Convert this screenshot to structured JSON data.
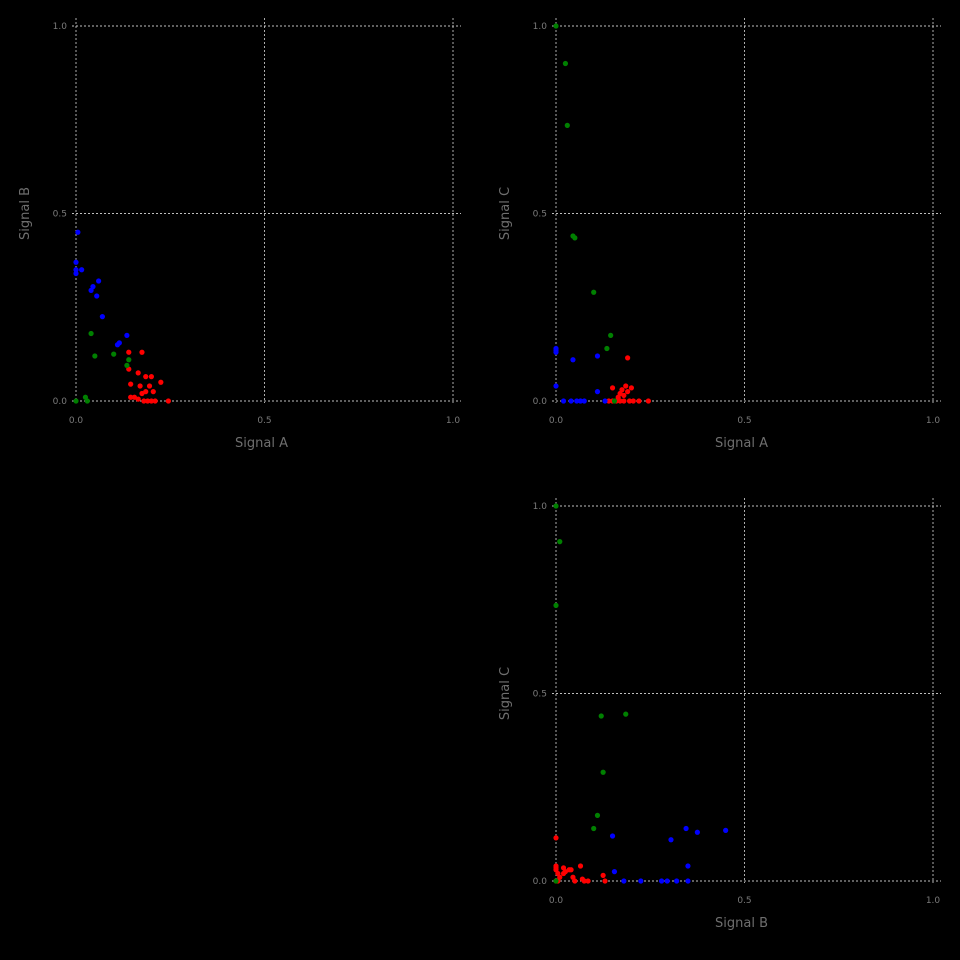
{
  "chart_data": [
    {
      "type": "scatter",
      "panel": "top-left",
      "xlabel": "Signal A",
      "ylabel": "Signal B",
      "xlim": [
        0,
        1
      ],
      "ylim": [
        0,
        1
      ],
      "xticks": [
        "0.0",
        "0.5",
        "1.0"
      ],
      "yticks": [
        "0.0",
        "0.5",
        "1.0"
      ],
      "grid": true,
      "series": [
        {
          "color": "#ff0000",
          "points": [
            [
              0.14,
              0.13
            ],
            [
              0.175,
              0.13
            ],
            [
              0.14,
              0.085
            ],
            [
              0.165,
              0.075
            ],
            [
              0.185,
              0.065
            ],
            [
              0.2,
              0.065
            ],
            [
              0.225,
              0.05
            ],
            [
              0.145,
              0.045
            ],
            [
              0.17,
              0.04
            ],
            [
              0.195,
              0.04
            ],
            [
              0.185,
              0.025
            ],
            [
              0.205,
              0.025
            ],
            [
              0.175,
              0.02
            ],
            [
              0.145,
              0.01
            ],
            [
              0.155,
              0.01
            ],
            [
              0.165,
              0.005
            ],
            [
              0.18,
              0.0
            ],
            [
              0.19,
              0.0
            ],
            [
              0.2,
              0.0
            ],
            [
              0.21,
              0.0
            ],
            [
              0.245,
              0.0
            ]
          ]
        },
        {
          "color": "#0000ff",
          "points": [
            [
              0.005,
              0.45
            ],
            [
              0.0,
              0.37
            ],
            [
              0.0,
              0.35
            ],
            [
              0.0,
              0.34
            ],
            [
              0.015,
              0.35
            ],
            [
              0.06,
              0.32
            ],
            [
              0.045,
              0.305
            ],
            [
              0.04,
              0.295
            ],
            [
              0.055,
              0.28
            ],
            [
              0.07,
              0.225
            ],
            [
              0.135,
              0.175
            ],
            [
              0.115,
              0.155
            ],
            [
              0.11,
              0.15
            ]
          ]
        },
        {
          "color": "#008000",
          "points": [
            [
              0.04,
              0.18
            ],
            [
              0.05,
              0.12
            ],
            [
              0.1,
              0.125
            ],
            [
              0.14,
              0.11
            ],
            [
              0.135,
              0.095
            ],
            [
              0.025,
              0.01
            ],
            [
              0.03,
              0.0
            ],
            [
              0.0,
              0.0
            ]
          ]
        }
      ]
    },
    {
      "type": "scatter",
      "panel": "top-right",
      "xlabel": "Signal A",
      "ylabel": "Signal C",
      "xlim": [
        0,
        1
      ],
      "ylim": [
        0,
        1
      ],
      "xticks": [
        "0.0",
        "0.5",
        "1.0"
      ],
      "yticks": [
        "0.0",
        "0.5",
        "1.0"
      ],
      "grid": true,
      "series": [
        {
          "color": "#ff0000",
          "points": [
            [
              0.19,
              0.115
            ],
            [
              0.185,
              0.04
            ],
            [
              0.2,
              0.035
            ],
            [
              0.15,
              0.035
            ],
            [
              0.175,
              0.03
            ],
            [
              0.19,
              0.025
            ],
            [
              0.17,
              0.02
            ],
            [
              0.18,
              0.015
            ],
            [
              0.165,
              0.01
            ],
            [
              0.14,
              0.0
            ],
            [
              0.15,
              0.0
            ],
            [
              0.16,
              0.0
            ],
            [
              0.17,
              0.0
            ],
            [
              0.18,
              0.0
            ],
            [
              0.195,
              0.0
            ],
            [
              0.205,
              0.0
            ],
            [
              0.22,
              0.0
            ],
            [
              0.245,
              0.0
            ]
          ]
        },
        {
          "color": "#0000ff",
          "points": [
            [
              0.0,
              0.14
            ],
            [
              0.0,
              0.135
            ],
            [
              0.0,
              0.13
            ],
            [
              0.11,
              0.12
            ],
            [
              0.045,
              0.11
            ],
            [
              0.0,
              0.04
            ],
            [
              0.11,
              0.025
            ],
            [
              0.02,
              0.0
            ],
            [
              0.04,
              0.0
            ],
            [
              0.055,
              0.0
            ],
            [
              0.065,
              0.0
            ],
            [
              0.075,
              0.0
            ],
            [
              0.13,
              0.0
            ]
          ]
        },
        {
          "color": "#008000",
          "points": [
            [
              0.0,
              1.0
            ],
            [
              0.025,
              0.9
            ],
            [
              0.03,
              0.735
            ],
            [
              0.045,
              0.44
            ],
            [
              0.05,
              0.435
            ],
            [
              0.1,
              0.29
            ],
            [
              0.145,
              0.175
            ],
            [
              0.135,
              0.14
            ],
            [
              0.155,
              0.0
            ]
          ]
        }
      ]
    },
    {
      "type": "scatter",
      "panel": "bottom-right",
      "xlabel": "Signal B",
      "ylabel": "Signal C",
      "xlim": [
        0,
        1
      ],
      "ylim": [
        0,
        1
      ],
      "xticks": [
        "0.0",
        "0.5",
        "1.0"
      ],
      "yticks": [
        "0.0",
        "0.5",
        "1.0"
      ],
      "grid": true,
      "series": [
        {
          "color": "#ff0000",
          "points": [
            [
              0.0,
              0.115
            ],
            [
              0.0,
              0.04
            ],
            [
              0.0,
              0.035
            ],
            [
              0.0,
              0.03
            ],
            [
              0.005,
              0.02
            ],
            [
              0.01,
              0.01
            ],
            [
              0.0,
              0.0
            ],
            [
              0.005,
              0.0
            ],
            [
              0.02,
              0.035
            ],
            [
              0.025,
              0.025
            ],
            [
              0.035,
              0.03
            ],
            [
              0.02,
              0.02
            ],
            [
              0.065,
              0.04
            ],
            [
              0.05,
              0.0
            ],
            [
              0.07,
              0.005
            ],
            [
              0.075,
              0.0
            ],
            [
              0.085,
              0.0
            ],
            [
              0.125,
              0.015
            ],
            [
              0.13,
              0.0
            ],
            [
              0.04,
              0.03
            ],
            [
              0.045,
              0.01
            ]
          ]
        },
        {
          "color": "#0000ff",
          "points": [
            [
              0.45,
              0.135
            ],
            [
              0.345,
              0.14
            ],
            [
              0.375,
              0.13
            ],
            [
              0.305,
              0.11
            ],
            [
              0.15,
              0.12
            ],
            [
              0.35,
              0.04
            ],
            [
              0.155,
              0.025
            ],
            [
              0.18,
              0.0
            ],
            [
              0.225,
              0.0
            ],
            [
              0.28,
              0.0
            ],
            [
              0.295,
              0.0
            ],
            [
              0.32,
              0.0
            ],
            [
              0.35,
              0.0
            ]
          ]
        },
        {
          "color": "#008000",
          "points": [
            [
              0.0,
              1.0
            ],
            [
              0.01,
              0.905
            ],
            [
              0.0,
              0.735
            ],
            [
              0.185,
              0.445
            ],
            [
              0.12,
              0.44
            ],
            [
              0.125,
              0.29
            ],
            [
              0.11,
              0.175
            ],
            [
              0.1,
              0.14
            ],
            [
              0.0,
              0.0
            ]
          ]
        }
      ]
    }
  ]
}
